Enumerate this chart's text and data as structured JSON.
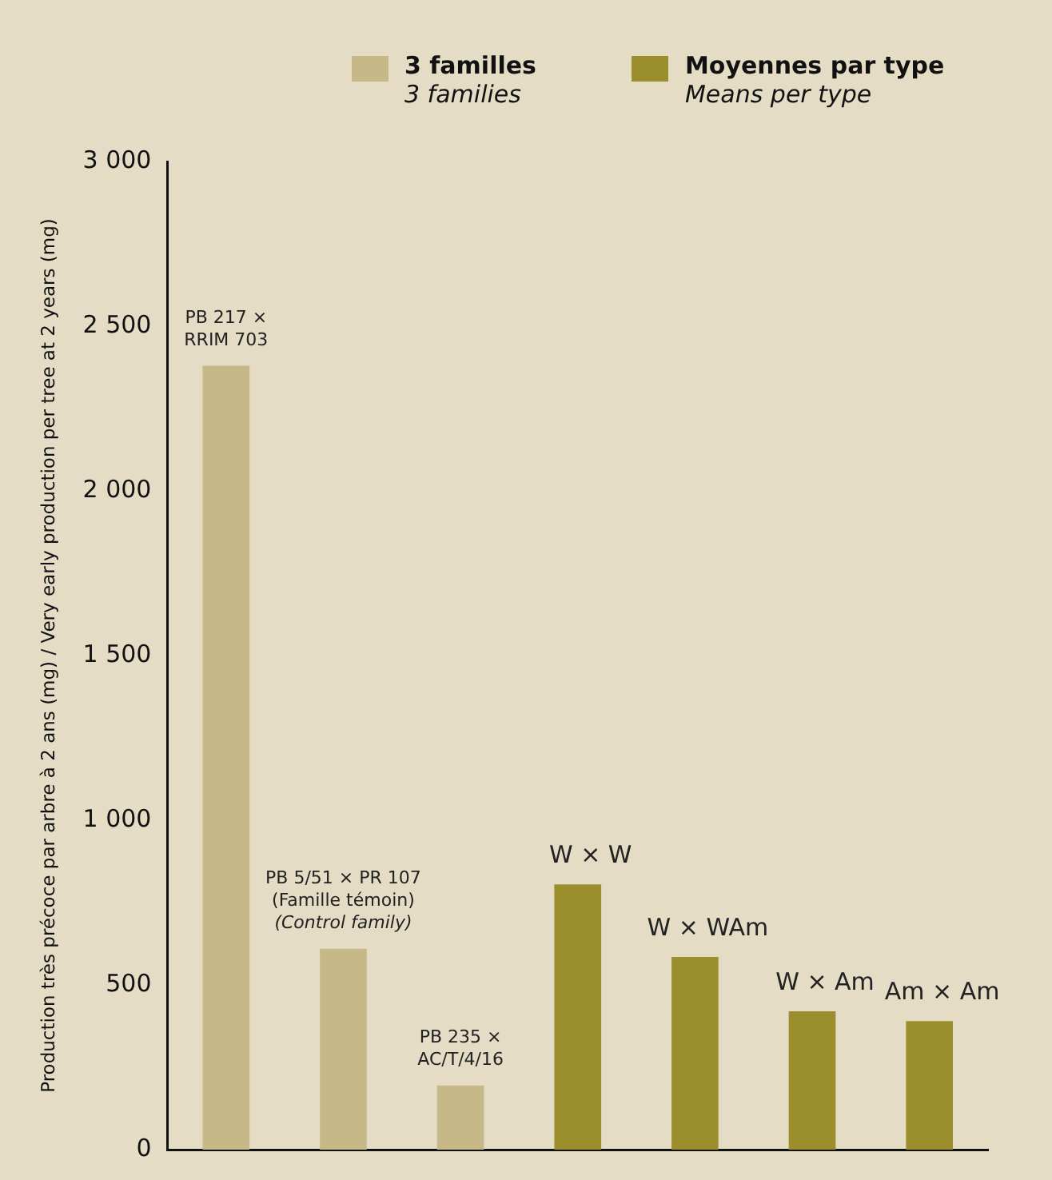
{
  "chart_data": {
    "type": "bar",
    "ylabel": "Production très précoce par arbre à 2 ans (mg) / Very early production per tree at 2 years (mg)",
    "categories": [
      "PB 217 ×\nRRIM 703",
      "PB 5/51 × PR 107\n(Famille témoin)\n(Control family)",
      "PB 235 ×\nAC/T/4/16",
      "W × W",
      "W × WAm",
      "W × Am",
      "Am × Am"
    ],
    "series": [
      {
        "name": "3 familles\n3 families",
        "color": "#c7b887",
        "values": [
          2380,
          610,
          195,
          null,
          null,
          null,
          null
        ]
      },
      {
        "name": "Moyennes par type\nMeans per type",
        "color": "#9b8f2d",
        "values": [
          null,
          null,
          null,
          805,
          585,
          420,
          390
        ]
      }
    ],
    "ylim": [
      0,
      3000
    ],
    "yticks": [
      0,
      {
        "value": 500,
        "label": "500"
      },
      {
        "value": 1000,
        "label": "1 000"
      },
      {
        "value": 1500,
        "label": "1 500"
      },
      {
        "value": 2000,
        "label": "2 000"
      },
      {
        "value": 2500,
        "label": "2 500"
      },
      {
        "value": 3000,
        "label": "3 000"
      }
    ],
    "grid": false,
    "legend": "top",
    "tick_labels": "y"
  }
}
